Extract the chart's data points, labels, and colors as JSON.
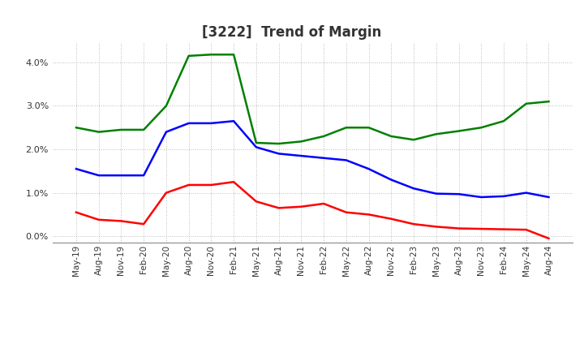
{
  "title": "[3222]  Trend of Margin",
  "title_fontsize": 12,
  "title_fontweight": "bold",
  "title_color": "#333333",
  "x_labels": [
    "May-19",
    "Aug-19",
    "Nov-19",
    "Feb-20",
    "May-20",
    "Aug-20",
    "Nov-20",
    "Feb-21",
    "May-21",
    "Aug-21",
    "Nov-21",
    "Feb-22",
    "May-22",
    "Aug-22",
    "Nov-22",
    "Feb-23",
    "May-23",
    "Aug-23",
    "Nov-23",
    "Feb-24",
    "May-24",
    "Aug-24"
  ],
  "ordinary_income": [
    1.55,
    1.4,
    1.4,
    1.4,
    2.4,
    2.6,
    2.6,
    2.65,
    2.05,
    1.9,
    1.85,
    1.8,
    1.75,
    1.55,
    1.3,
    1.1,
    0.98,
    0.97,
    0.9,
    0.92,
    1.0,
    0.9
  ],
  "net_income": [
    0.55,
    0.38,
    0.35,
    0.28,
    1.0,
    1.18,
    1.18,
    1.25,
    0.8,
    0.65,
    0.68,
    0.75,
    0.55,
    0.5,
    0.4,
    0.28,
    0.22,
    0.18,
    0.17,
    0.16,
    0.15,
    -0.05
  ],
  "operating_cashflow": [
    2.5,
    2.4,
    2.45,
    2.45,
    3.0,
    4.15,
    4.18,
    4.18,
    2.15,
    2.13,
    2.18,
    2.3,
    2.5,
    2.5,
    2.3,
    2.22,
    2.35,
    2.42,
    2.5,
    2.65,
    3.05,
    3.1
  ],
  "ordinary_income_color": "#0000FF",
  "net_income_color": "#FF0000",
  "operating_cashflow_color": "#008000",
  "ylim": [
    -0.15,
    4.45
  ],
  "yticks": [
    0.0,
    1.0,
    2.0,
    3.0,
    4.0
  ],
  "background_color": "#ffffff",
  "grid_color": "#aaaaaa"
}
